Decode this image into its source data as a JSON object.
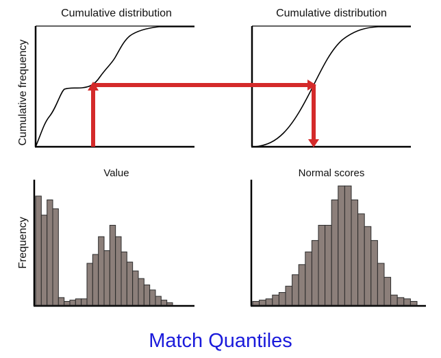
{
  "colors": {
    "axis": "#000000",
    "curve": "#000000",
    "arrow": "#d42a2a",
    "bar_fill": "#8c7f7a",
    "bar_stroke": "#2a2a2a",
    "caption": "#1a1adb"
  },
  "left_cdf": {
    "title": "Cumulative distribution",
    "ylabel": "Cumulative frequency"
  },
  "right_cdf": {
    "title": "Cumulative distribution"
  },
  "left_hist": {
    "title": "Value",
    "ylabel": "Frequency",
    "heights": [
      0.86,
      0.71,
      0.83,
      0.76,
      0.06,
      0.03,
      0.04,
      0.05,
      0.05,
      0.33,
      0.4,
      0.54,
      0.43,
      0.63,
      0.54,
      0.42,
      0.34,
      0.27,
      0.21,
      0.16,
      0.12,
      0.07,
      0.04,
      0.02
    ]
  },
  "right_hist": {
    "title": "Normal scores",
    "heights": [
      0.03,
      0.04,
      0.05,
      0.08,
      0.1,
      0.15,
      0.24,
      0.32,
      0.42,
      0.51,
      0.63,
      0.63,
      0.83,
      0.94,
      0.94,
      0.83,
      0.72,
      0.62,
      0.51,
      0.33,
      0.22,
      0.08,
      0.06,
      0.05,
      0.03
    ]
  },
  "caption": "Match Quantiles"
}
